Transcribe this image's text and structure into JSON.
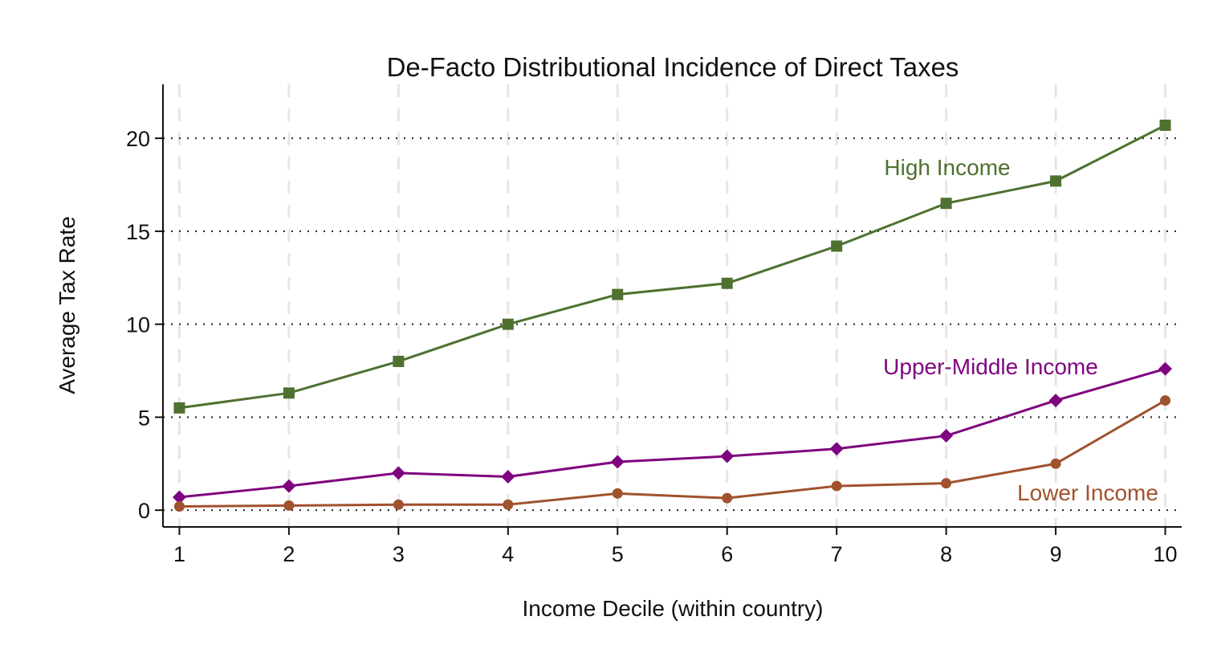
{
  "chart_data": {
    "type": "line",
    "title": "De-Facto Distributional Incidence of Direct Taxes",
    "xlabel": "Income Decile (within country)",
    "ylabel": "Average Tax Rate",
    "x": [
      1,
      2,
      3,
      4,
      5,
      6,
      7,
      8,
      9,
      10
    ],
    "xlim": [
      0.85,
      10.15
    ],
    "ylim": [
      -0.9,
      22.9
    ],
    "yticks": [
      0,
      5,
      10,
      15,
      20
    ],
    "grid": {
      "horizontal": "dotted",
      "vertical": "dashed"
    },
    "legend": "inline labels",
    "series": [
      {
        "name": "High Income",
        "color": "#4f7130",
        "marker": "square",
        "values": [
          5.5,
          6.3,
          8.0,
          10.0,
          11.6,
          12.2,
          14.2,
          16.5,
          17.7,
          20.7
        ]
      },
      {
        "name": "Upper-Middle Income",
        "color": "#7f047f",
        "marker": "diamond",
        "values": [
          0.7,
          1.3,
          2.0,
          1.8,
          2.6,
          2.9,
          3.3,
          4.0,
          5.9,
          7.6
        ]
      },
      {
        "name": "Lower Income",
        "color": "#a0522d",
        "marker": "circle",
        "values": [
          0.2,
          0.25,
          0.3,
          0.3,
          0.9,
          0.65,
          1.3,
          1.45,
          2.5,
          5.9
        ]
      }
    ]
  }
}
